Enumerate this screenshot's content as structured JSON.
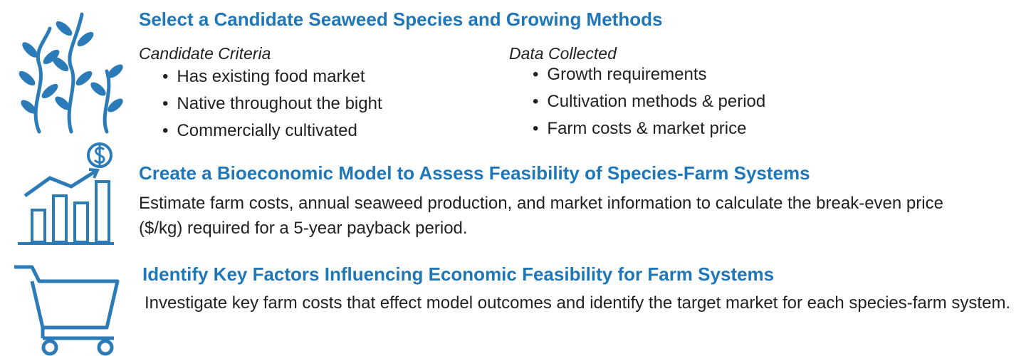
{
  "sections": [
    {
      "title": "Select a Candidate Seaweed Species and Growing Methods",
      "criteria": {
        "heading": "Candidate Criteria",
        "items": [
          "Has existing food market",
          "Native throughout the bight",
          "Commercially cultivated"
        ]
      },
      "data": {
        "heading": "Data Collected",
        "items": [
          "Growth requirements",
          "Cultivation methods & period",
          "Farm costs & market price"
        ]
      }
    },
    {
      "title": "Create a Bioeconomic Model to Assess Feasibility of Species-Farm Systems",
      "body": "Estimate farm costs, annual seaweed production, and market information to calculate the break-even price ($/kg) required for a 5-year payback period."
    },
    {
      "title": "Identify Key Factors Influencing Economic Feasibility for Farm Systems",
      "body": "Investigate key farm costs that effect model outcomes and identify the target market for each species-farm system."
    }
  ]
}
